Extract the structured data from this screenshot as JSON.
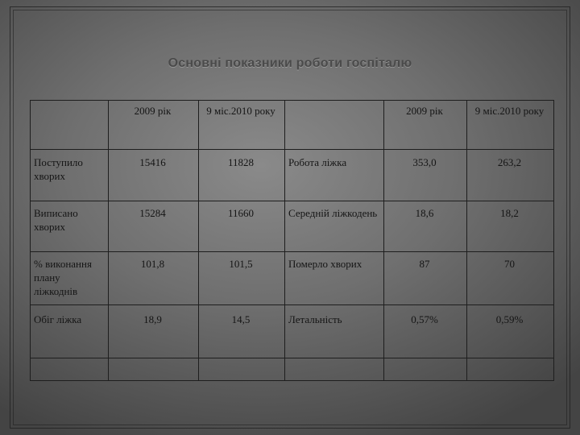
{
  "title": "Основні показники роботи госпіталю",
  "headers": [
    "",
    "2009 рік",
    "9 міс.2010 року",
    "",
    "2009 рік",
    "9 міс.2010 року"
  ],
  "rows": [
    [
      "Поступило хворих",
      "15416",
      "11828",
      "Робота ліжка",
      "353,0",
      "263,2"
    ],
    [
      "Виписано хворих",
      "15284",
      "11660",
      "Середній ліжкодень",
      "18,6",
      "18,2"
    ],
    [
      "% виконання плану ліжкоднів",
      "101,8",
      "101,5",
      "Померло хворих",
      "87",
      "70"
    ],
    [
      "Обіг ліжка",
      "18,9",
      "14,5",
      "Летальність",
      "0,57%",
      "0,59%"
    ],
    [
      "",
      "",
      "",
      "",
      "",
      ""
    ]
  ]
}
